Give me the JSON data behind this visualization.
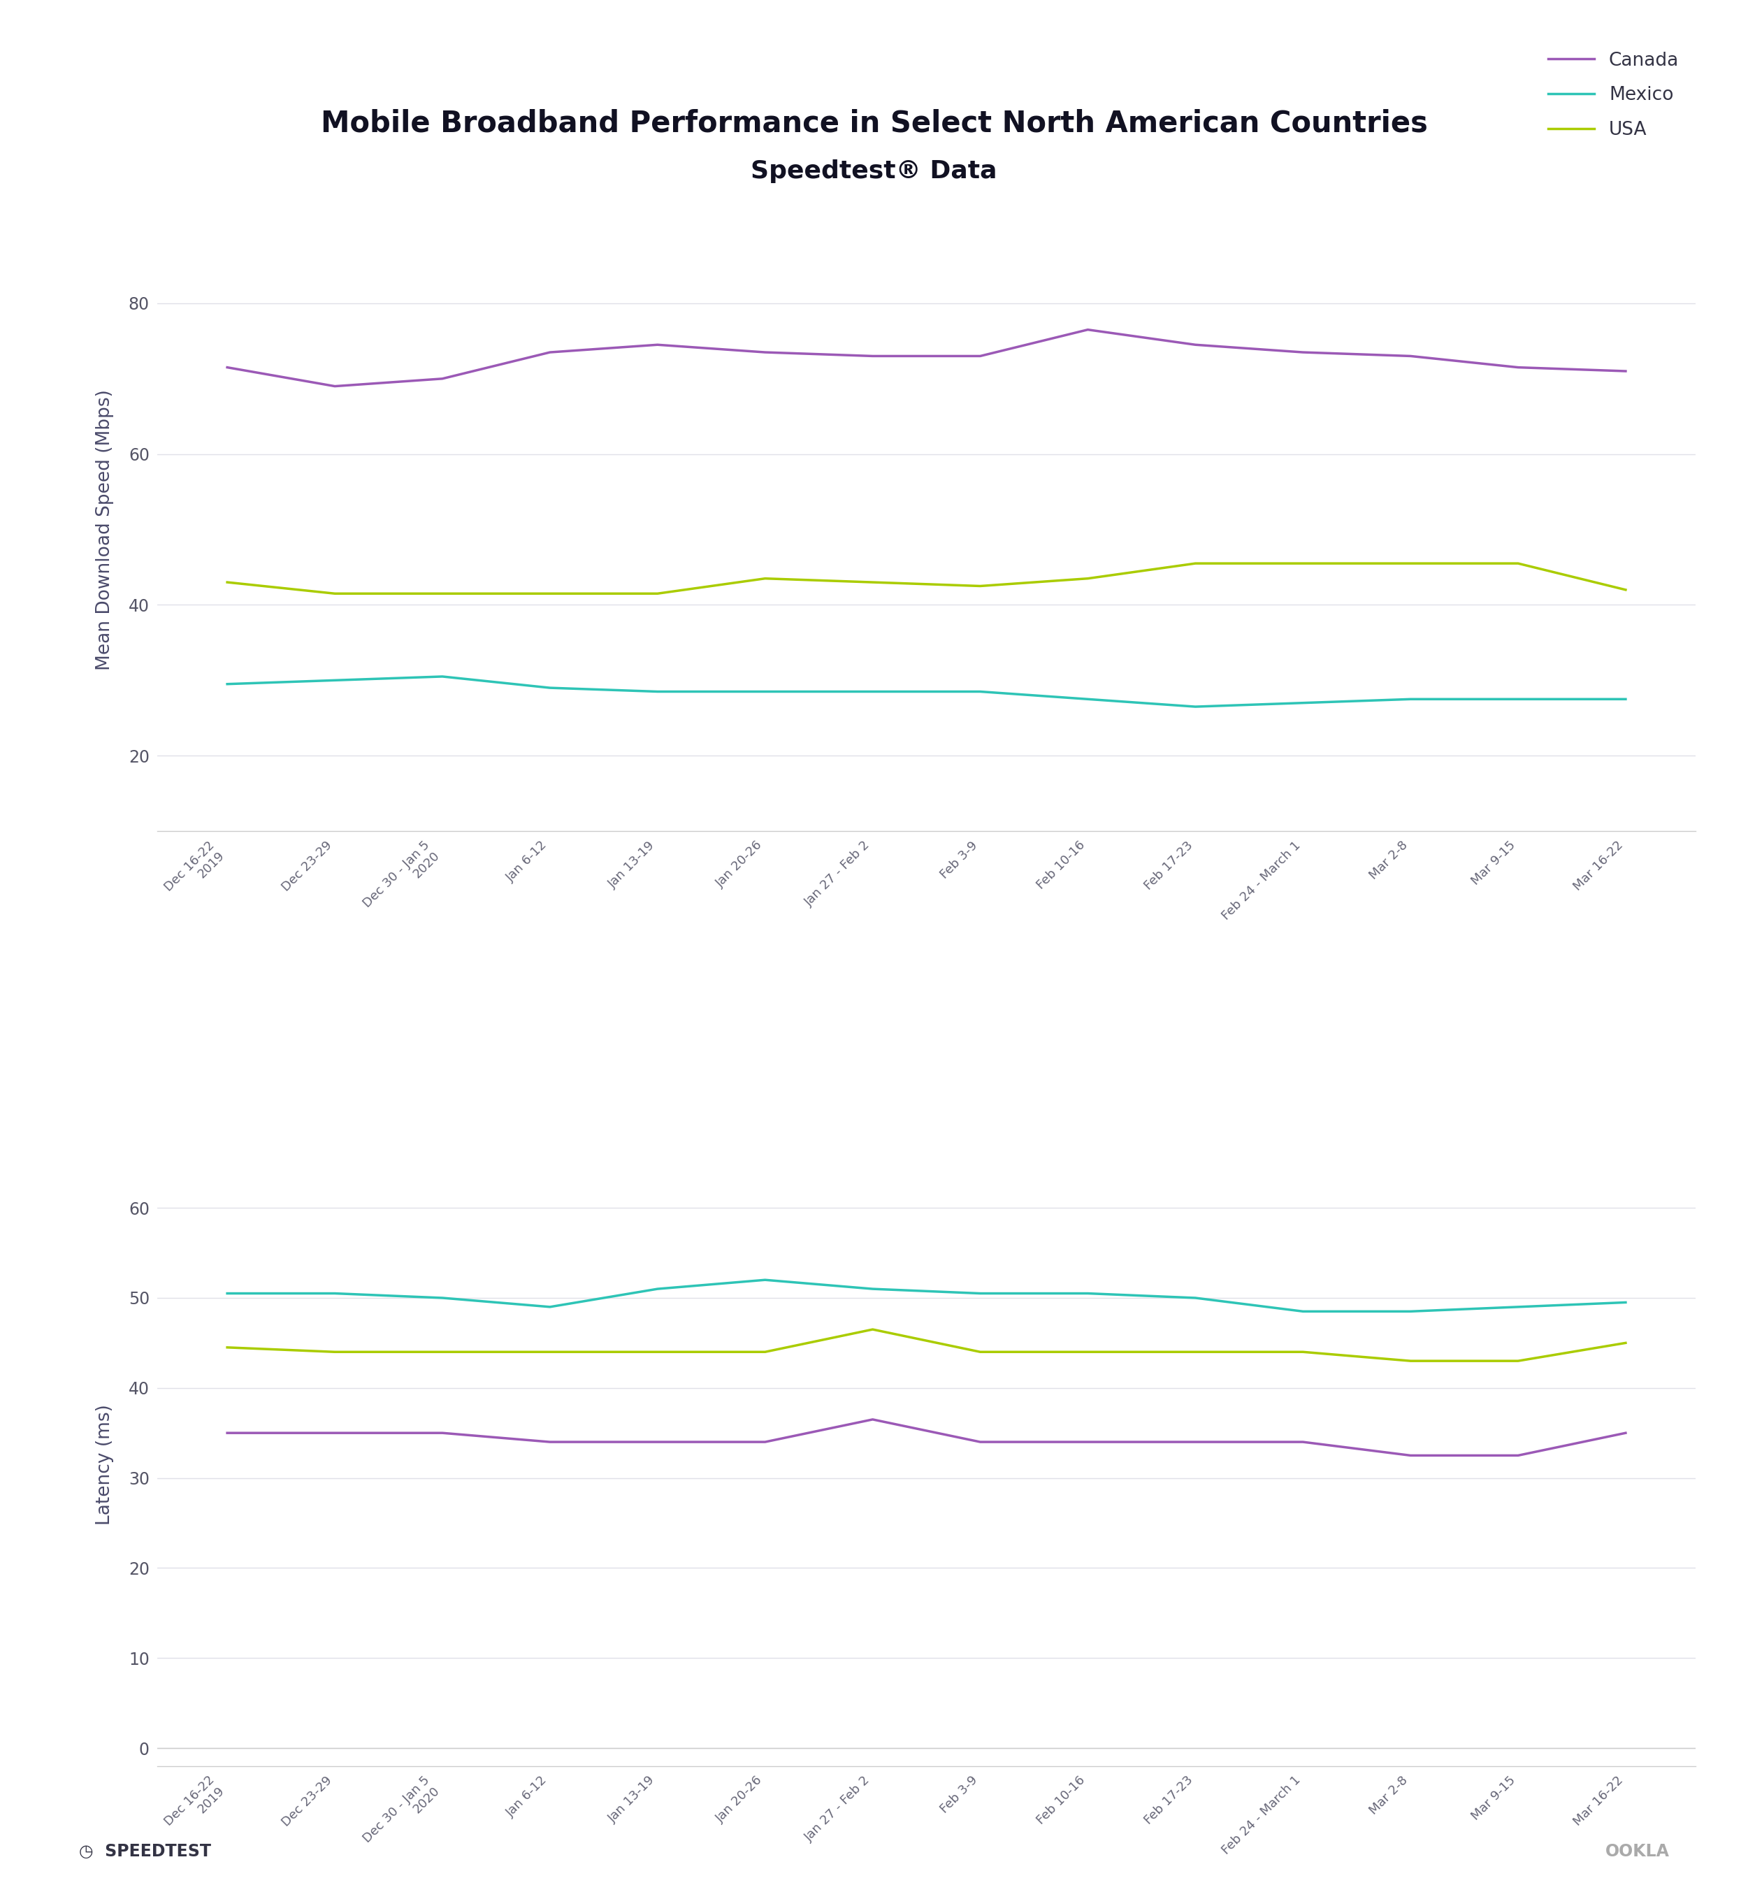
{
  "title_line1": "Mobile Broadband Performance in Select North American Countries",
  "title_line2": "Speedtest® Data",
  "x_labels": [
    "Dec 16-22\n2019",
    "Dec 23-29",
    "Dec 30 - Jan 5\n2020",
    "Jan 6-12",
    "Jan 13-19",
    "Jan 20-26",
    "Jan 27 - Feb 2",
    "Feb 3-9",
    "Feb 10-16",
    "Feb 17-23",
    "Feb 24 - March 1",
    "Mar 2-8",
    "Mar 9-15",
    "Mar 16-22"
  ],
  "canada_speed": [
    71.5,
    69.0,
    70.0,
    73.5,
    74.5,
    73.5,
    73.0,
    73.0,
    76.5,
    74.5,
    73.5,
    73.0,
    71.5,
    71.0
  ],
  "mexico_speed": [
    29.5,
    30.0,
    30.5,
    29.0,
    28.5,
    28.5,
    28.5,
    28.5,
    27.5,
    26.5,
    27.0,
    27.5,
    27.5,
    27.5
  ],
  "usa_speed": [
    43.0,
    41.5,
    41.5,
    41.5,
    41.5,
    43.5,
    43.0,
    42.5,
    43.5,
    45.5,
    45.5,
    45.5,
    45.5,
    42.0
  ],
  "canada_latency": [
    35.0,
    35.0,
    35.0,
    34.0,
    34.0,
    34.0,
    36.5,
    34.0,
    34.0,
    34.0,
    34.0,
    32.5,
    32.5,
    35.0
  ],
  "mexico_latency": [
    50.5,
    50.5,
    50.0,
    49.0,
    51.0,
    52.0,
    51.0,
    50.5,
    50.5,
    50.0,
    48.5,
    48.5,
    49.0,
    49.5
  ],
  "usa_latency": [
    44.5,
    44.0,
    44.0,
    44.0,
    44.0,
    44.0,
    46.5,
    44.0,
    44.0,
    44.0,
    44.0,
    43.0,
    43.0,
    45.0
  ],
  "color_canada": "#9B59B6",
  "color_mexico": "#2EC4B6",
  "color_usa": "#AACC00",
  "ylabel_speed": "Mean Download Speed (Mbps)",
  "ylabel_latency": "Latency (ms)",
  "speed_yticks": [
    20,
    40,
    60,
    80
  ],
  "latency_yticks": [
    0,
    10,
    20,
    30,
    40,
    50,
    60
  ],
  "speed_ylim": [
    10,
    90
  ],
  "latency_ylim": [
    -2,
    65
  ],
  "legend_labels": [
    "Canada",
    "Mexico",
    "USA"
  ],
  "footer_left": "SPEEDTEST",
  "footer_right": "OOKLA"
}
